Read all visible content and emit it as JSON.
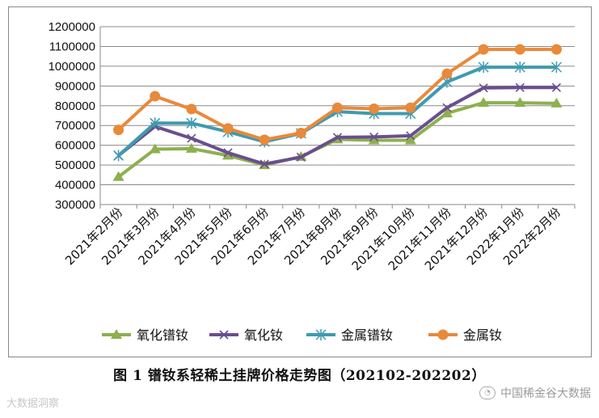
{
  "chart_data": {
    "type": "line",
    "title": "",
    "xlabel": "",
    "ylabel": "",
    "categories": [
      "2021年2月份",
      "2021年3月份",
      "2021年4月份",
      "2021年5月份",
      "2021年6月份",
      "2021年7月份",
      "2021年8月份",
      "2021年9月份",
      "2021年10月份",
      "2021年11月份",
      "2021年12月份",
      "2022年1月份",
      "2022年2月份"
    ],
    "ylim": [
      300000,
      1200000
    ],
    "yticks": [
      300000,
      400000,
      500000,
      600000,
      700000,
      800000,
      900000,
      1000000,
      1100000,
      1200000
    ],
    "grid": true,
    "legend": "bottom",
    "series": [
      {
        "name": "氧化镨钕",
        "color": "#8db04f",
        "marker": "triangle",
        "values": [
          440000,
          580000,
          583000,
          548000,
          500000,
          542000,
          630000,
          625000,
          625000,
          762000,
          815000,
          815000,
          812000
        ]
      },
      {
        "name": "氧化钕",
        "color": "#6a4e8e",
        "marker": "x",
        "values": [
          548000,
          695000,
          635000,
          562000,
          505000,
          540000,
          640000,
          642000,
          648000,
          790000,
          890000,
          892000,
          892000
        ]
      },
      {
        "name": "金属镨钕",
        "color": "#3e9bb0",
        "marker": "star",
        "values": [
          548000,
          712000,
          712000,
          668000,
          618000,
          660000,
          770000,
          760000,
          760000,
          920000,
          995000,
          995000,
          995000
        ]
      },
      {
        "name": "金属钕",
        "color": "#e9893a",
        "marker": "circle",
        "values": [
          678000,
          848000,
          783000,
          685000,
          628000,
          662000,
          790000,
          785000,
          790000,
          962000,
          1085000,
          1085000,
          1085000
        ]
      }
    ]
  },
  "caption": "图 1  镨钕系轻稀土挂牌价格走势图（202102-202202）",
  "watermark_left": "大数据洞察",
  "watermark_right": "中国稀金谷大数据"
}
